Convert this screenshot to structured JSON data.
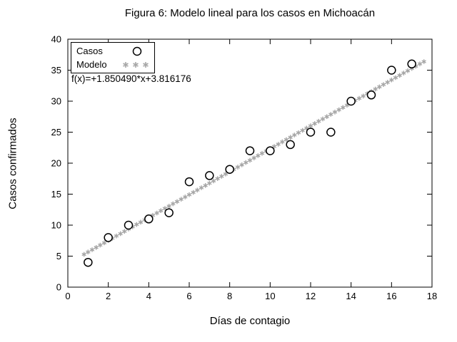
{
  "chart_data": {
    "type": "scatter",
    "title": "Figura 6: Modelo lineal para los casos en Michoacán",
    "xlabel": "Días de contagio",
    "ylabel": "Casos confirmados",
    "xlim": [
      0,
      18
    ],
    "ylim": [
      0,
      40
    ],
    "xticks": [
      0,
      2,
      4,
      6,
      8,
      10,
      12,
      14,
      16,
      18
    ],
    "yticks": [
      0,
      5,
      10,
      15,
      20,
      25,
      30,
      35,
      40
    ],
    "grid": false,
    "legend_position": "top-left",
    "annotation": "f(x)=+1.850490*x+3.816176",
    "series": [
      {
        "name": "Casos",
        "marker": "circle",
        "color": "#000000",
        "x": [
          1,
          2,
          3,
          4,
          5,
          6,
          7,
          8,
          9,
          10,
          11,
          12,
          13,
          14,
          15,
          16,
          17
        ],
        "y": [
          4,
          8,
          10,
          11,
          12,
          17,
          18,
          19,
          22,
          22,
          23,
          25,
          25,
          30,
          31,
          35,
          36
        ]
      },
      {
        "name": "Modelo",
        "marker": "asterisk",
        "color": "#a6a6a6",
        "model": {
          "slope": 1.85049,
          "intercept": 3.816176,
          "x_start": 0.8,
          "x_end": 17.6,
          "step": 0.2
        }
      }
    ]
  }
}
